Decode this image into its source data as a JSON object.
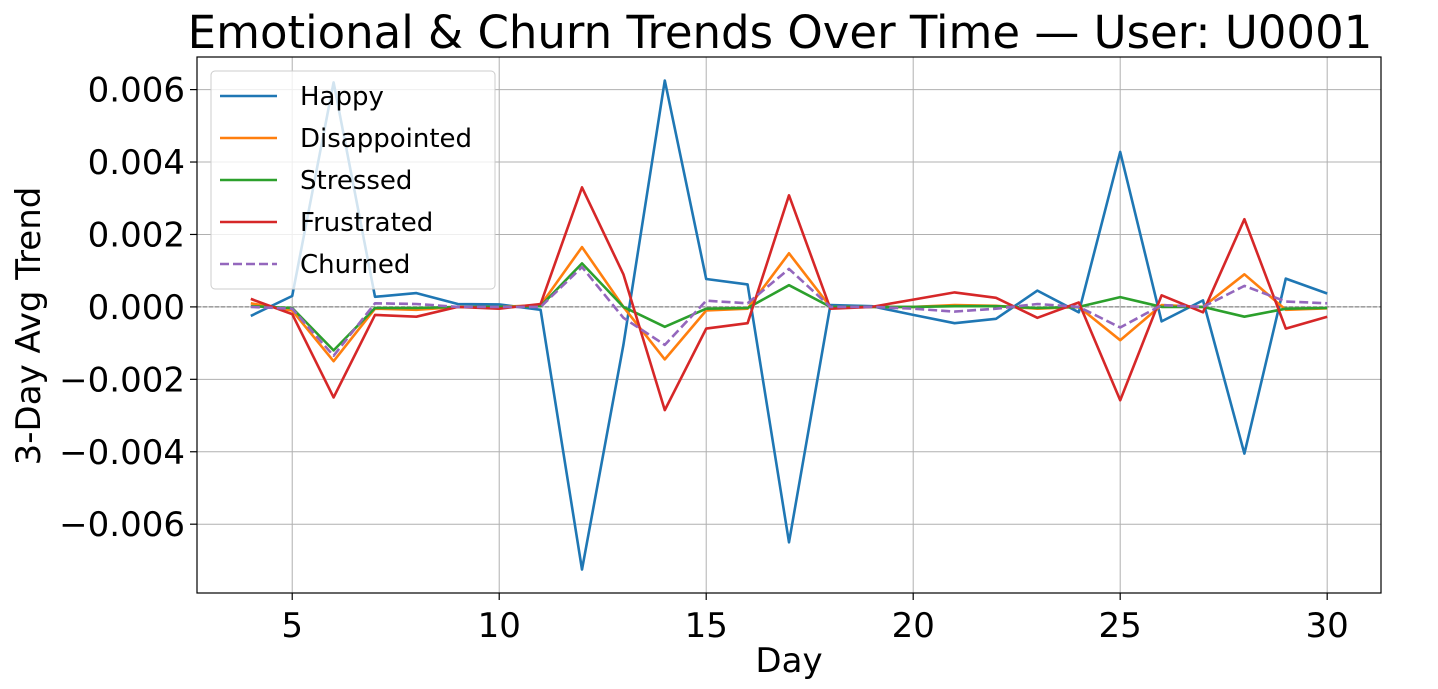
{
  "chart_data": {
    "type": "line",
    "title": "Emotional & Churn Trends Over Time — User: U0001",
    "xlabel": "Day",
    "ylabel": "3-Day Avg Trend",
    "xlim": [
      2.7,
      31.3
    ],
    "ylim": [
      -0.0079,
      0.0069
    ],
    "x_ticks": [
      5,
      10,
      15,
      20,
      25,
      30
    ],
    "y_ticks": [
      -0.006,
      -0.004,
      -0.002,
      0.0,
      0.002,
      0.004,
      0.006
    ],
    "x_tick_labels": [
      "5",
      "10",
      "15",
      "20",
      "25",
      "30"
    ],
    "y_tick_labels": [
      "−0.006",
      "−0.004",
      "−0.002",
      "0.000",
      "0.002",
      "0.004",
      "0.006"
    ],
    "grid": true,
    "zero_line": true,
    "legend_position": "top-left",
    "x": [
      4,
      5,
      6,
      7,
      8,
      9,
      10,
      11,
      12,
      13,
      14,
      15,
      16,
      17,
      18,
      19,
      20,
      21,
      22,
      23,
      24,
      25,
      26,
      27,
      28,
      29,
      30
    ],
    "series": [
      {
        "name": "Happy",
        "color": "#1f77b4",
        "dashed": false,
        "values": [
          -0.00025,
          0.0003,
          0.0062,
          0.00028,
          0.00038,
          8e-05,
          7e-05,
          -8e-05,
          -0.00725,
          -0.00105,
          0.00625,
          0.00077,
          0.00062,
          -0.0065,
          5e-05,
          2e-05,
          -0.00022,
          -0.00045,
          -0.00033,
          0.00045,
          -0.00015,
          0.00428,
          -0.0004,
          0.00018,
          -0.00405,
          0.00078,
          0.00037
        ]
      },
      {
        "name": "Disappointed",
        "color": "#ff7f0e",
        "dashed": false,
        "values": [
          0.0001,
          -0.0001,
          -0.0015,
          -5e-05,
          -8e-05,
          0.0,
          0.0,
          5e-05,
          0.00165,
          0.0,
          -0.00145,
          -0.0001,
          -5e-05,
          0.00148,
          0.0,
          0.0,
          0.0,
          5e-05,
          3e-05,
          -5e-05,
          0.0,
          -0.00092,
          5e-05,
          0.0,
          0.0009,
          -8e-05,
          -4e-05
        ]
      },
      {
        "name": "Stressed",
        "color": "#2ca02c",
        "dashed": false,
        "values": [
          2e-05,
          -3e-05,
          -0.0012,
          -3e-05,
          -3e-05,
          0.0,
          0.0,
          2e-05,
          0.0012,
          0.0,
          -0.00055,
          -5e-05,
          -3e-05,
          0.0006,
          0.0,
          0.0,
          0.0,
          2e-05,
          2e-05,
          -3e-05,
          0.0,
          0.00027,
          0.0,
          0.0,
          -0.00027,
          -5e-05,
          -3e-05
        ]
      },
      {
        "name": "Frustrated",
        "color": "#d62728",
        "dashed": false,
        "values": [
          0.00022,
          -0.0002,
          -0.0025,
          -0.00022,
          -0.00027,
          0.0,
          -5e-05,
          8e-05,
          0.0033,
          0.0009,
          -0.00285,
          -0.0006,
          -0.00045,
          0.00308,
          -5e-05,
          0.0,
          0.0002,
          0.0004,
          0.00025,
          -0.0003,
          0.00012,
          -0.00258,
          0.00032,
          -0.00015,
          0.00242,
          -0.0006,
          -0.00027
        ]
      },
      {
        "name": "Churned",
        "color": "#9467bd",
        "dashed": true,
        "values": [
          0.0,
          -5e-05,
          -0.00135,
          0.0001,
          8e-05,
          0.0,
          0.0,
          0.0,
          0.0011,
          -0.0003,
          -0.00105,
          0.00017,
          0.0001,
          0.00105,
          0.0,
          0.0,
          -5e-05,
          -0.00013,
          -5e-05,
          8e-05,
          0.0,
          -0.00057,
          5e-05,
          0.0,
          0.00058,
          0.00015,
          0.0001
        ]
      }
    ]
  }
}
